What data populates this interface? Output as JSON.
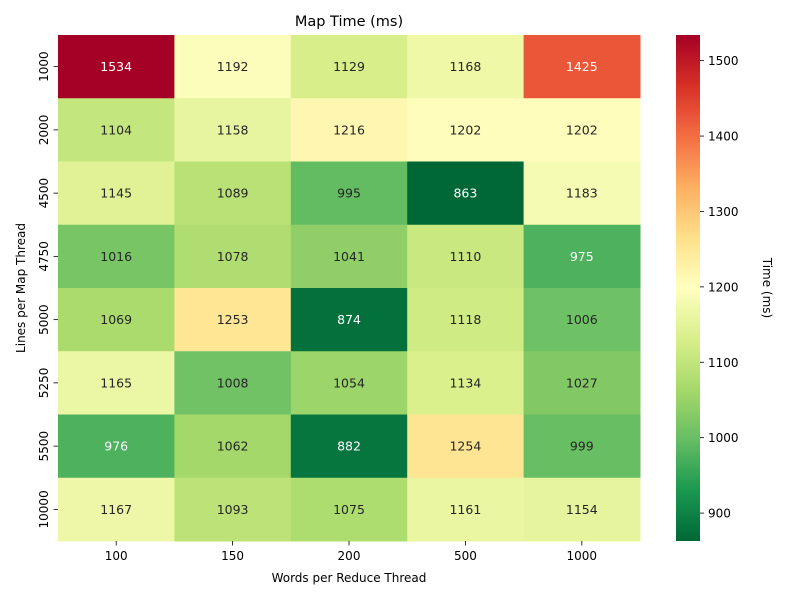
{
  "chart_data": {
    "type": "heatmap",
    "title": "Map Time (ms)",
    "xlabel": "Words per Reduce Thread",
    "ylabel": "Lines per Map Thread",
    "x_categories": [
      "100",
      "150",
      "200",
      "500",
      "1000"
    ],
    "y_categories": [
      "1000",
      "2000",
      "4500",
      "4750",
      "5000",
      "5250",
      "5500",
      "10000"
    ],
    "values": [
      [
        1534,
        1192,
        1129,
        1168,
        1425
      ],
      [
        1104,
        1158,
        1216,
        1202,
        1202
      ],
      [
        1145,
        1089,
        995,
        863,
        1183
      ],
      [
        1016,
        1078,
        1041,
        1110,
        975
      ],
      [
        1069,
        1253,
        874,
        1118,
        1006
      ],
      [
        1165,
        1008,
        1054,
        1134,
        1027
      ],
      [
        976,
        1062,
        882,
        1254,
        999
      ],
      [
        1167,
        1093,
        1075,
        1161,
        1154
      ]
    ],
    "colorbar": {
      "label": "Time (ms)",
      "ticks": [
        900,
        1000,
        1100,
        1200,
        1300,
        1400,
        1500
      ],
      "vmin": 863,
      "vmax": 1534,
      "colormap": "RdYlGn_r"
    }
  }
}
